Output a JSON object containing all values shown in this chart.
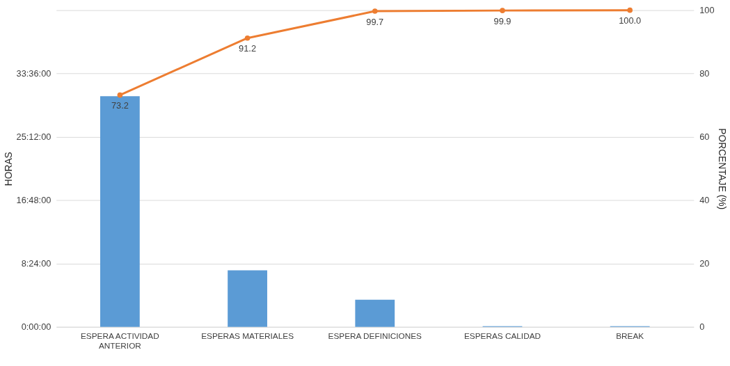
{
  "chart_data": {
    "type": "bar",
    "categories": [
      "ESPERA ACTIVIDAD ANTERIOR",
      "ESPERAS MATERIALES",
      "ESPERA DEFINICIONES",
      "ESPERAS CALIDAD",
      "BREAK"
    ],
    "ylabel": "HORAS",
    "y2label": "PORCENTAJE (%)",
    "series": [
      {
        "color": "#5b9bd5",
        "values": [
          30.6,
          7.5,
          3.6,
          0.1,
          0.1
        ]
      },
      {
        "type": "line",
        "axis": "y2",
        "color": "#ed7d31",
        "marker": "circle",
        "values": [
          73.2,
          91.2,
          99.7,
          99.9,
          100.0
        ],
        "value_labels": [
          "73.2",
          "91.2",
          "99.7",
          "99.9",
          "100.0"
        ]
      }
    ],
    "ylim": [
      0,
      42
    ],
    "yticks": [
      {
        "value": 0,
        "label": "0:00:00"
      },
      {
        "value": 8.4,
        "label": "8:24:00"
      },
      {
        "value": 16.8,
        "label": "16:48:00"
      },
      {
        "value": 25.2,
        "label": "25:12:00"
      },
      {
        "value": 33.6,
        "label": "33:36:00"
      },
      {
        "value": 42,
        "label": null
      }
    ],
    "y2lim": [
      0,
      100
    ],
    "y2ticks": [
      0,
      20,
      40,
      60,
      80,
      100
    ],
    "grid": "y"
  }
}
